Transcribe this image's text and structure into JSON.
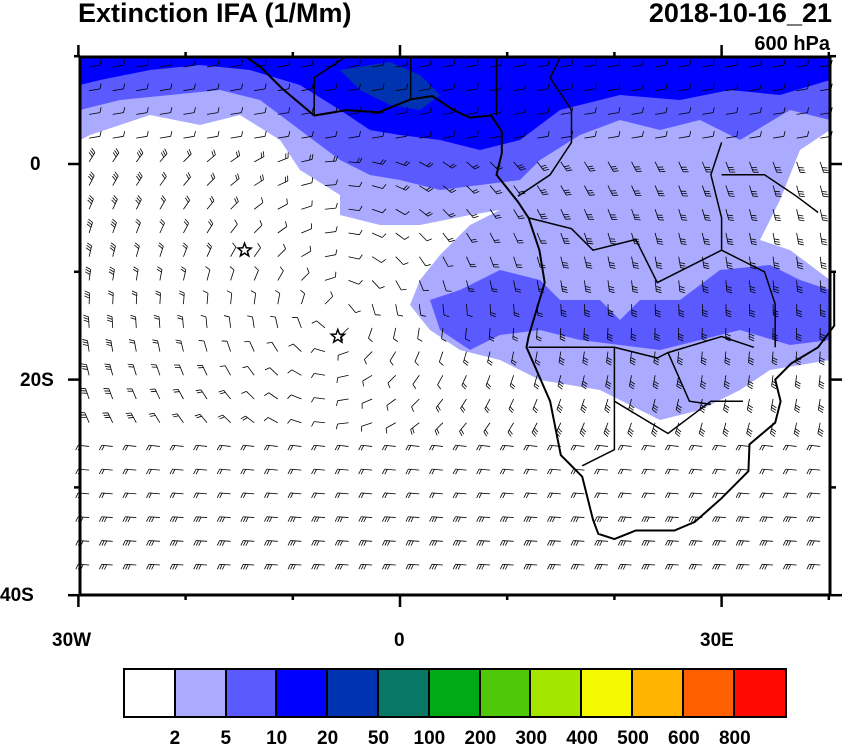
{
  "title_left": "Extinction IFA (1/Mm)",
  "title_right": "2018-10-16_21",
  "level": "600 hPa",
  "lat_ticks": [
    "0",
    "20S",
    "40S"
  ],
  "lon_ticks": [
    "30W",
    "0",
    "30E"
  ],
  "colorbar": {
    "colors": [
      "#ffffff",
      "#aaaaff",
      "#5a5aff",
      "#0000ff",
      "#0033b0",
      "#087865",
      "#00aa14",
      "#50c80a",
      "#a5e600",
      "#f5fa00",
      "#ffb400",
      "#ff5f00",
      "#ff0a00"
    ],
    "labels": [
      "2",
      "5",
      "10",
      "20",
      "50",
      "100",
      "200",
      "300",
      "400",
      "500",
      "600",
      "800"
    ]
  },
  "markers": [
    {
      "type": "star",
      "lon": -14.5,
      "lat": -8
    },
    {
      "type": "star",
      "lon": -5.8,
      "lat": -16
    }
  ]
}
